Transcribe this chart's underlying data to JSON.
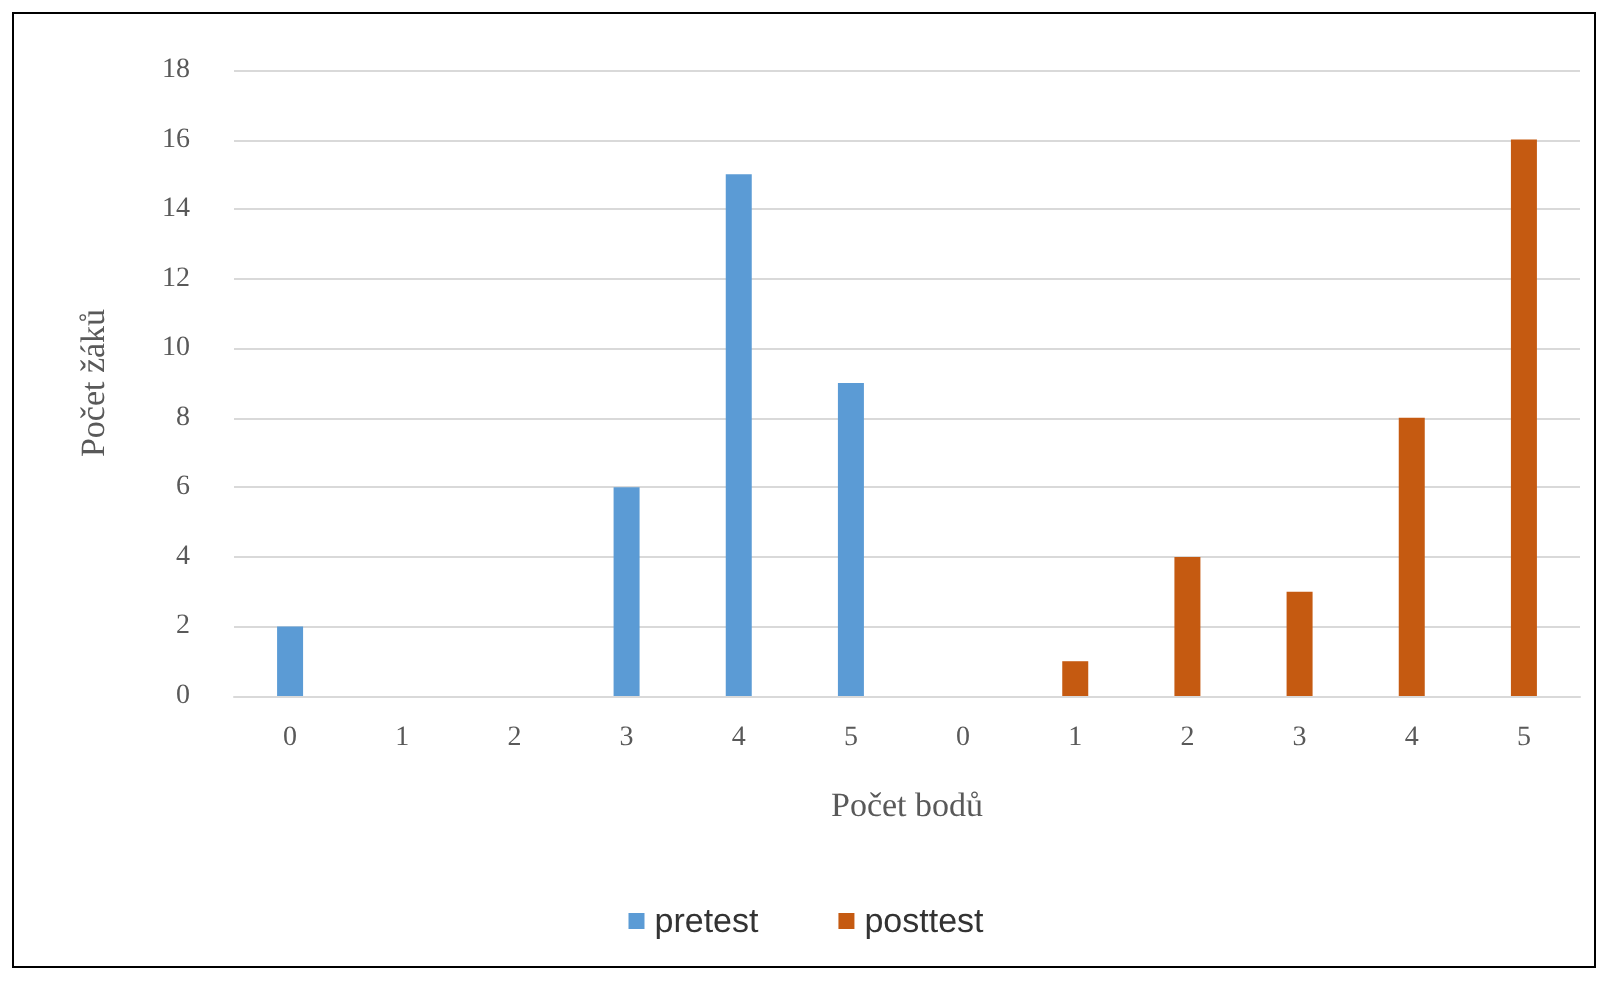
{
  "chart_data": {
    "type": "bar",
    "xlabel": "Počet bodů",
    "ylabel": "Počet žáků",
    "categories": [
      "0",
      "1",
      "2",
      "3",
      "4",
      "5",
      "0",
      "1",
      "2",
      "3",
      "4",
      "5"
    ],
    "series": [
      {
        "name": "pretest",
        "color": "#5b9bd5",
        "values": [
          2,
          0,
          0,
          6,
          15,
          9,
          null,
          null,
          null,
          null,
          null,
          null
        ]
      },
      {
        "name": "posttest",
        "color": "#c55a11",
        "values": [
          null,
          null,
          null,
          null,
          null,
          null,
          0,
          1,
          4,
          3,
          8,
          16
        ]
      }
    ],
    "ylim": [
      0,
      18
    ],
    "yticks": [
      0,
      2,
      4,
      6,
      8,
      10,
      12,
      14,
      16,
      18
    ],
    "grid": "y",
    "legend": "bottom"
  }
}
